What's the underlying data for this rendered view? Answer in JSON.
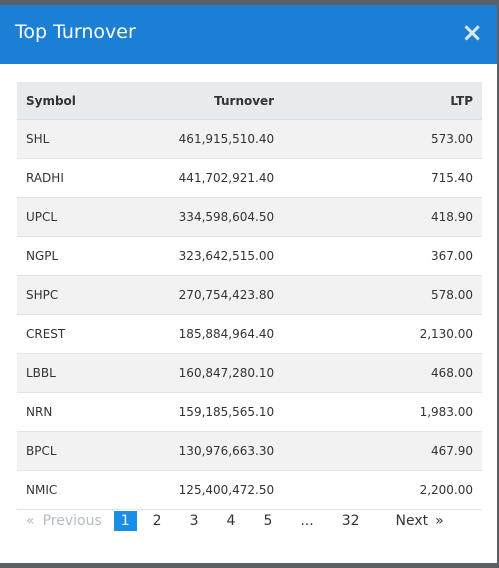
{
  "modal": {
    "title": "Top Turnover",
    "close": "×"
  },
  "table": {
    "columns": [
      "Symbol",
      "Turnover",
      "LTP"
    ],
    "rows": [
      [
        "SHL",
        "461,915,510.40",
        "573.00"
      ],
      [
        "RADHI",
        "441,702,921.40",
        "715.40"
      ],
      [
        "UPCL",
        "334,598,604.50",
        "418.90"
      ],
      [
        "NGPL",
        "323,642,515.00",
        "367.00"
      ],
      [
        "SHPC",
        "270,754,423.80",
        "578.00"
      ],
      [
        "CREST",
        "185,884,964.40",
        "2,130.00"
      ],
      [
        "LBBL",
        "160,847,280.10",
        "468.00"
      ],
      [
        "NRN",
        "159,185,565.10",
        "1,983.00"
      ],
      [
        "BPCL",
        "130,976,663.30",
        "467.90"
      ],
      [
        "NMIC",
        "125,400,472.50",
        "2,200.00"
      ]
    ]
  },
  "pagination": {
    "prev_icon": "«",
    "previous": "Previous",
    "pages": [
      "1",
      "2",
      "3",
      "4",
      "5",
      "...",
      "32"
    ],
    "active": 0,
    "next": "Next",
    "next_icon": "»"
  }
}
